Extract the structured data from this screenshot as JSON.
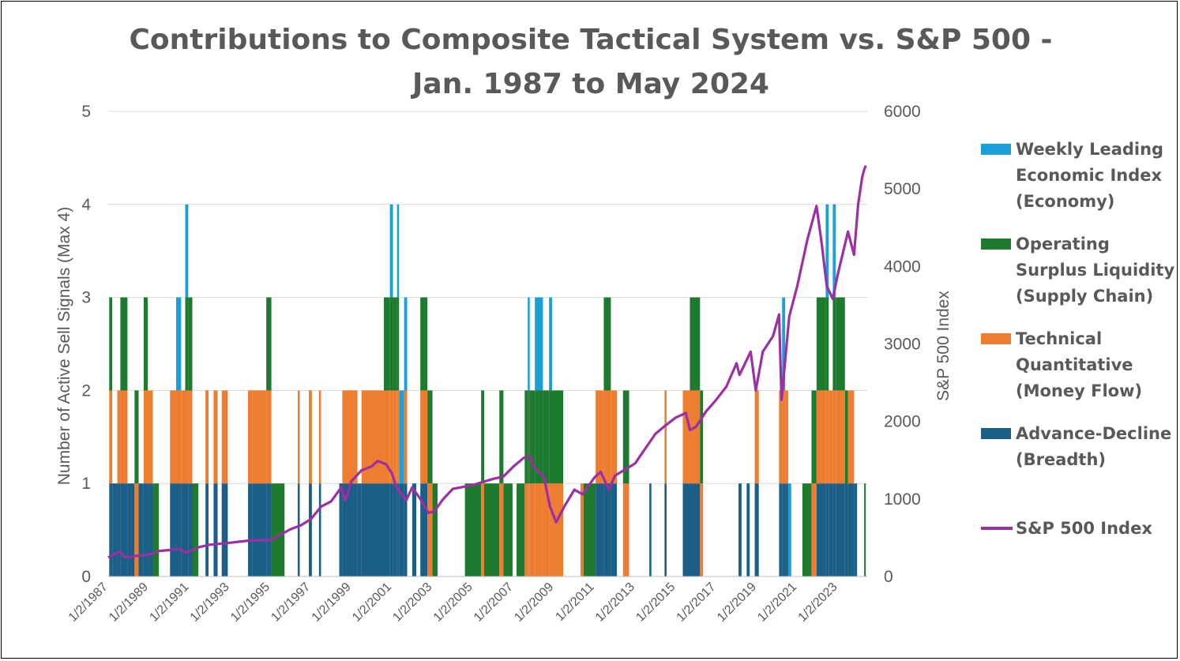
{
  "chart_data": {
    "type": "bar+line",
    "title_lines": [
      "Contributions to Composite Tactical System vs. S&P 500 -",
      "Jan. 1987 to May 2024"
    ],
    "ylabel": "Number of Active Sell Signals (Max 4)",
    "y2label": "S&P 500 Index",
    "ylim": [
      0,
      5
    ],
    "y2lim": [
      0,
      6000
    ],
    "yticks": [
      "0",
      "1",
      "2",
      "3",
      "4",
      "5"
    ],
    "y2ticks": [
      "0",
      "1000",
      "2000",
      "3000",
      "4000",
      "5000",
      "6000"
    ],
    "xlim": [
      1987.0,
      2024.45
    ],
    "xticks": [
      {
        "label": "1/2/1987",
        "x": 1987.0
      },
      {
        "label": "1/2/1989",
        "x": 1989.0
      },
      {
        "label": "1/2/1991",
        "x": 1991.0
      },
      {
        "label": "1/2/1993",
        "x": 1993.0
      },
      {
        "label": "1/2/1995",
        "x": 1995.0
      },
      {
        "label": "1/2/1997",
        "x": 1997.0
      },
      {
        "label": "1/2/1999",
        "x": 1999.0
      },
      {
        "label": "1/2/2001",
        "x": 2001.0
      },
      {
        "label": "1/2/2003",
        "x": 2003.0
      },
      {
        "label": "1/2/2005",
        "x": 2005.0
      },
      {
        "label": "1/2/2007",
        "x": 2007.0
      },
      {
        "label": "1/2/2009",
        "x": 2009.0
      },
      {
        "label": "1/2/2011",
        "x": 2011.0
      },
      {
        "label": "1/2/2013",
        "x": 2013.0
      },
      {
        "label": "1/2/2015",
        "x": 2015.0
      },
      {
        "label": "1/2/2017",
        "x": 2017.0
      },
      {
        "label": "1/2/2019",
        "x": 2019.0
      },
      {
        "label": "1/2/2021",
        "x": 2021.0
      },
      {
        "label": "1/2/2023",
        "x": 2023.0
      }
    ],
    "colors": {
      "economy": "#1AA0D8",
      "liquidity": "#1E7A2E",
      "technical": "#ED7D31",
      "breadth": "#1B5E86",
      "sp500": "#9B2FA3",
      "grid": "#D9D9D9"
    },
    "legend": [
      {
        "key": "economy",
        "lines": [
          "Weekly Leading",
          "Economic Index",
          "(Economy)"
        ],
        "kind": "box"
      },
      {
        "key": "liquidity",
        "lines": [
          "Operating",
          "Surplus Liquidity",
          "(Supply Chain)"
        ],
        "kind": "box"
      },
      {
        "key": "technical",
        "lines": [
          "Technical",
          "Quantitative",
          "(Money Flow)"
        ],
        "kind": "box"
      },
      {
        "key": "breadth",
        "lines": [
          "Advance-Decline",
          "(Breadth)"
        ],
        "kind": "box"
      },
      {
        "key": "sp500",
        "lines": [
          "S&P 500 Index"
        ],
        "kind": "line"
      }
    ],
    "signal_bars": [
      {
        "x0": 1987.05,
        "x1": 1987.2,
        "breadth": 1,
        "technical": 1,
        "liquidity": 1,
        "economy": 0
      },
      {
        "x0": 1987.2,
        "x1": 1987.45,
        "breadth": 1,
        "technical": 0,
        "liquidity": 0,
        "economy": 0
      },
      {
        "x0": 1987.45,
        "x1": 1987.6,
        "breadth": 1,
        "technical": 1,
        "liquidity": 0,
        "economy": 0
      },
      {
        "x0": 1987.6,
        "x1": 1987.95,
        "breadth": 1,
        "technical": 1,
        "liquidity": 1,
        "economy": 0
      },
      {
        "x0": 1987.95,
        "x1": 1988.3,
        "breadth": 1,
        "technical": 0,
        "liquidity": 0,
        "economy": 0
      },
      {
        "x0": 1988.3,
        "x1": 1988.5,
        "breadth": 0,
        "technical": 1,
        "liquidity": 1,
        "economy": 0
      },
      {
        "x0": 1988.5,
        "x1": 1988.75,
        "breadth": 1,
        "technical": 0,
        "liquidity": 0,
        "economy": 0
      },
      {
        "x0": 1988.75,
        "x1": 1988.95,
        "breadth": 1,
        "technical": 1,
        "liquidity": 1,
        "economy": 0
      },
      {
        "x0": 1988.95,
        "x1": 1989.2,
        "breadth": 1,
        "technical": 1,
        "liquidity": 0,
        "economy": 0
      },
      {
        "x0": 1989.2,
        "x1": 1989.5,
        "breadth": 0,
        "technical": 0,
        "liquidity": 1,
        "economy": 0
      },
      {
        "x0": 1990.05,
        "x1": 1990.35,
        "breadth": 1,
        "technical": 1,
        "liquidity": 0,
        "economy": 0
      },
      {
        "x0": 1990.35,
        "x1": 1990.6,
        "breadth": 1,
        "technical": 1,
        "liquidity": 0,
        "economy": 1
      },
      {
        "x0": 1990.6,
        "x1": 1990.8,
        "breadth": 1,
        "technical": 1,
        "liquidity": 0,
        "economy": 0
      },
      {
        "x0": 1990.8,
        "x1": 1990.95,
        "breadth": 1,
        "technical": 1,
        "liquidity": 1,
        "economy": 1
      },
      {
        "x0": 1990.95,
        "x1": 1991.15,
        "breadth": 1,
        "technical": 1,
        "liquidity": 1,
        "economy": 0
      },
      {
        "x0": 1991.15,
        "x1": 1991.45,
        "breadth": 0,
        "technical": 0,
        "liquidity": 1,
        "economy": 0
      },
      {
        "x0": 1991.8,
        "x1": 1991.95,
        "breadth": 1,
        "technical": 1,
        "liquidity": 0,
        "economy": 0
      },
      {
        "x0": 1992.2,
        "x1": 1992.4,
        "breadth": 1,
        "technical": 1,
        "liquidity": 0,
        "economy": 0
      },
      {
        "x0": 1992.6,
        "x1": 1992.9,
        "breadth": 1,
        "technical": 1,
        "liquidity": 0,
        "economy": 0
      },
      {
        "x0": 1993.9,
        "x1": 1994.1,
        "breadth": 1,
        "technical": 1,
        "liquidity": 0,
        "economy": 0
      },
      {
        "x0": 1994.1,
        "x1": 1994.8,
        "breadth": 1,
        "technical": 1,
        "liquidity": 0,
        "economy": 0
      },
      {
        "x0": 1994.8,
        "x1": 1995.05,
        "breadth": 1,
        "technical": 1,
        "liquidity": 1,
        "economy": 0
      },
      {
        "x0": 1995.05,
        "x1": 1995.7,
        "breadth": 0,
        "technical": 0,
        "liquidity": 1,
        "economy": 0
      },
      {
        "x0": 1996.35,
        "x1": 1996.45,
        "breadth": 1,
        "technical": 1,
        "liquidity": 0,
        "economy": 0
      },
      {
        "x0": 1996.9,
        "x1": 1997.05,
        "breadth": 1,
        "technical": 1,
        "liquidity": 0,
        "economy": 0
      },
      {
        "x0": 1997.4,
        "x1": 1997.5,
        "breadth": 1,
        "technical": 1,
        "liquidity": 0,
        "economy": 0
      },
      {
        "x0": 1998.4,
        "x1": 1998.55,
        "breadth": 1,
        "technical": 0,
        "liquidity": 0,
        "economy": 0
      },
      {
        "x0": 1998.55,
        "x1": 1999.3,
        "breadth": 1,
        "technical": 1,
        "liquidity": 0,
        "economy": 0
      },
      {
        "x0": 1999.3,
        "x1": 1999.5,
        "breadth": 1,
        "technical": 0,
        "liquidity": 0,
        "economy": 0
      },
      {
        "x0": 1999.5,
        "x1": 2000.6,
        "breadth": 1,
        "technical": 1,
        "liquidity": 0,
        "economy": 0
      },
      {
        "x0": 2000.6,
        "x1": 2000.9,
        "breadth": 1,
        "technical": 1,
        "liquidity": 1,
        "economy": 0
      },
      {
        "x0": 2000.9,
        "x1": 2001.05,
        "breadth": 1,
        "technical": 1,
        "liquidity": 1,
        "economy": 1
      },
      {
        "x0": 2001.05,
        "x1": 2001.25,
        "breadth": 1,
        "technical": 1,
        "liquidity": 1,
        "economy": 0
      },
      {
        "x0": 2001.25,
        "x1": 2001.35,
        "breadth": 1,
        "technical": 1,
        "liquidity": 1,
        "economy": 1
      },
      {
        "x0": 2001.35,
        "x1": 2001.6,
        "breadth": 1,
        "technical": 0,
        "liquidity": 0,
        "economy": 1
      },
      {
        "x0": 2001.6,
        "x1": 2001.75,
        "breadth": 1,
        "technical": 1,
        "liquidity": 0,
        "economy": 1
      },
      {
        "x0": 2002.0,
        "x1": 2002.2,
        "breadth": 1,
        "technical": 0,
        "liquidity": 0,
        "economy": 0
      },
      {
        "x0": 2002.4,
        "x1": 2002.75,
        "breadth": 1,
        "technical": 1,
        "liquidity": 1,
        "economy": 0
      },
      {
        "x0": 2002.75,
        "x1": 2003.0,
        "breadth": 0,
        "technical": 1,
        "liquidity": 1,
        "economy": 0
      },
      {
        "x0": 2003.0,
        "x1": 2003.25,
        "breadth": 0,
        "technical": 0,
        "liquidity": 1,
        "economy": 0
      },
      {
        "x0": 2004.6,
        "x1": 2005.4,
        "breadth": 0,
        "technical": 0,
        "liquidity": 1,
        "economy": 0
      },
      {
        "x0": 2005.4,
        "x1": 2005.55,
        "breadth": 0,
        "technical": 1,
        "liquidity": 1,
        "economy": 0
      },
      {
        "x0": 2005.55,
        "x1": 2006.3,
        "breadth": 0,
        "technical": 0,
        "liquidity": 1,
        "economy": 0
      },
      {
        "x0": 2006.3,
        "x1": 2006.5,
        "breadth": 0,
        "technical": 1,
        "liquidity": 1,
        "economy": 0
      },
      {
        "x0": 2006.5,
        "x1": 2006.95,
        "breadth": 0,
        "technical": 0,
        "liquidity": 1,
        "economy": 0
      },
      {
        "x0": 2007.15,
        "x1": 2007.55,
        "breadth": 0,
        "technical": 0,
        "liquidity": 1,
        "economy": 0
      },
      {
        "x0": 2007.55,
        "x1": 2007.7,
        "breadth": 0,
        "technical": 1,
        "liquidity": 1,
        "economy": 0
      },
      {
        "x0": 2007.7,
        "x1": 2007.8,
        "breadth": 0,
        "technical": 1,
        "liquidity": 1,
        "economy": 1
      },
      {
        "x0": 2007.8,
        "x1": 2008.05,
        "breadth": 0,
        "technical": 1,
        "liquidity": 1,
        "economy": 0
      },
      {
        "x0": 2008.05,
        "x1": 2008.45,
        "breadth": 0,
        "technical": 1,
        "liquidity": 1,
        "economy": 1
      },
      {
        "x0": 2008.45,
        "x1": 2008.75,
        "breadth": 0,
        "technical": 1,
        "liquidity": 1,
        "economy": 0
      },
      {
        "x0": 2008.75,
        "x1": 2008.9,
        "breadth": 0,
        "technical": 1,
        "liquidity": 1,
        "economy": 1
      },
      {
        "x0": 2008.9,
        "x1": 2009.45,
        "breadth": 0,
        "technical": 1,
        "liquidity": 1,
        "economy": 0
      },
      {
        "x0": 2010.3,
        "x1": 2010.45,
        "breadth": 0,
        "technical": 1,
        "liquidity": 0,
        "economy": 0
      },
      {
        "x0": 2010.45,
        "x1": 2011.05,
        "breadth": 0,
        "technical": 0,
        "liquidity": 1,
        "economy": 0
      },
      {
        "x0": 2011.05,
        "x1": 2011.45,
        "breadth": 1,
        "technical": 1,
        "liquidity": 0,
        "economy": 0
      },
      {
        "x0": 2011.45,
        "x1": 2011.8,
        "breadth": 1,
        "technical": 1,
        "liquidity": 1,
        "economy": 0
      },
      {
        "x0": 2011.8,
        "x1": 2012.1,
        "breadth": 1,
        "technical": 1,
        "liquidity": 0,
        "economy": 0
      },
      {
        "x0": 2012.4,
        "x1": 2012.7,
        "breadth": 0,
        "technical": 1,
        "liquidity": 1,
        "economy": 0
      },
      {
        "x0": 2013.7,
        "x1": 2013.8,
        "breadth": 1,
        "technical": 0,
        "liquidity": 0,
        "economy": 0
      },
      {
        "x0": 2014.45,
        "x1": 2014.55,
        "breadth": 1,
        "technical": 1,
        "liquidity": 0,
        "economy": 0
      },
      {
        "x0": 2015.35,
        "x1": 2015.7,
        "breadth": 1,
        "technical": 1,
        "liquidity": 0,
        "economy": 0
      },
      {
        "x0": 2015.7,
        "x1": 2016.2,
        "breadth": 1,
        "technical": 1,
        "liquidity": 1,
        "economy": 0
      },
      {
        "x0": 2016.2,
        "x1": 2016.35,
        "breadth": 0,
        "technical": 1,
        "liquidity": 1,
        "economy": 0
      },
      {
        "x0": 2018.1,
        "x1": 2018.25,
        "breadth": 1,
        "technical": 0,
        "liquidity": 0,
        "economy": 0
      },
      {
        "x0": 2018.5,
        "x1": 2018.65,
        "breadth": 1,
        "technical": 0,
        "liquidity": 0,
        "economy": 0
      },
      {
        "x0": 2018.9,
        "x1": 2019.1,
        "breadth": 1,
        "technical": 1,
        "liquidity": 0,
        "economy": 0
      },
      {
        "x0": 2020.1,
        "x1": 2020.25,
        "breadth": 1,
        "technical": 1,
        "liquidity": 0,
        "economy": 0
      },
      {
        "x0": 2020.25,
        "x1": 2020.4,
        "breadth": 1,
        "technical": 1,
        "liquidity": 0,
        "economy": 1
      },
      {
        "x0": 2020.4,
        "x1": 2020.55,
        "breadth": 1,
        "technical": 1,
        "liquidity": 0,
        "economy": 0
      },
      {
        "x0": 2020.55,
        "x1": 2020.7,
        "breadth": 0,
        "technical": 0,
        "liquidity": 0,
        "economy": 1
      },
      {
        "x0": 2021.25,
        "x1": 2021.7,
        "breadth": 0,
        "technical": 0,
        "liquidity": 1,
        "economy": 0
      },
      {
        "x0": 2021.7,
        "x1": 2021.95,
        "breadth": 0,
        "technical": 1,
        "liquidity": 1,
        "economy": 0
      },
      {
        "x0": 2021.95,
        "x1": 2022.4,
        "breadth": 1,
        "technical": 1,
        "liquidity": 1,
        "economy": 0
      },
      {
        "x0": 2022.4,
        "x1": 2022.55,
        "breadth": 1,
        "technical": 1,
        "liquidity": 1,
        "economy": 1
      },
      {
        "x0": 2022.55,
        "x1": 2022.75,
        "breadth": 1,
        "technical": 1,
        "liquidity": 0,
        "economy": 0
      },
      {
        "x0": 2022.75,
        "x1": 2022.9,
        "breadth": 1,
        "technical": 1,
        "liquidity": 1,
        "economy": 1
      },
      {
        "x0": 2022.9,
        "x1": 2023.35,
        "breadth": 1,
        "technical": 1,
        "liquidity": 1,
        "economy": 0
      },
      {
        "x0": 2023.35,
        "x1": 2023.5,
        "breadth": 1,
        "technical": 0,
        "liquidity": 1,
        "economy": 0
      },
      {
        "x0": 2023.5,
        "x1": 2023.8,
        "breadth": 1,
        "technical": 1,
        "liquidity": 0,
        "economy": 0
      },
      {
        "x0": 2023.8,
        "x1": 2023.95,
        "breadth": 1,
        "technical": 0,
        "liquidity": 0,
        "economy": 0
      },
      {
        "x0": 2024.3,
        "x1": 2024.38,
        "breadth": 0,
        "technical": 0,
        "liquidity": 1,
        "economy": 0
      }
    ],
    "sp500_series": [
      [
        1987.0,
        245
      ],
      [
        1987.3,
        290
      ],
      [
        1987.6,
        320
      ],
      [
        1987.8,
        250
      ],
      [
        1988.0,
        248
      ],
      [
        1988.5,
        270
      ],
      [
        1989.0,
        280
      ],
      [
        1989.5,
        330
      ],
      [
        1990.0,
        340
      ],
      [
        1990.5,
        360
      ],
      [
        1990.8,
        310
      ],
      [
        1991.0,
        320
      ],
      [
        1991.5,
        380
      ],
      [
        1992.0,
        410
      ],
      [
        1993.0,
        435
      ],
      [
        1994.0,
        465
      ],
      [
        1995.0,
        470
      ],
      [
        1995.5,
        540
      ],
      [
        1996.0,
        610
      ],
      [
        1996.5,
        660
      ],
      [
        1997.0,
        740
      ],
      [
        1997.5,
        900
      ],
      [
        1998.0,
        970
      ],
      [
        1998.5,
        1150
      ],
      [
        1998.7,
        980
      ],
      [
        1999.0,
        1230
      ],
      [
        1999.5,
        1370
      ],
      [
        2000.0,
        1420
      ],
      [
        2000.3,
        1490
      ],
      [
        2000.7,
        1450
      ],
      [
        2001.0,
        1330
      ],
      [
        2001.2,
        1160
      ],
      [
        2001.7,
        980
      ],
      [
        2002.0,
        1150
      ],
      [
        2002.4,
        1000
      ],
      [
        2002.8,
        820
      ],
      [
        2003.1,
        840
      ],
      [
        2003.5,
        990
      ],
      [
        2004.0,
        1130
      ],
      [
        2005.0,
        1180
      ],
      [
        2006.0,
        1260
      ],
      [
        2006.5,
        1290
      ],
      [
        2007.0,
        1420
      ],
      [
        2007.5,
        1530
      ],
      [
        2007.8,
        1550
      ],
      [
        2008.0,
        1410
      ],
      [
        2008.5,
        1280
      ],
      [
        2008.8,
        900
      ],
      [
        2009.1,
        700
      ],
      [
        2009.5,
        900
      ],
      [
        2010.0,
        1120
      ],
      [
        2010.4,
        1060
      ],
      [
        2011.0,
        1280
      ],
      [
        2011.3,
        1350
      ],
      [
        2011.7,
        1120
      ],
      [
        2012.0,
        1300
      ],
      [
        2012.5,
        1380
      ],
      [
        2013.0,
        1460
      ],
      [
        2013.5,
        1650
      ],
      [
        2014.0,
        1840
      ],
      [
        2014.5,
        1950
      ],
      [
        2015.0,
        2050
      ],
      [
        2015.5,
        2110
      ],
      [
        2015.7,
        1890
      ],
      [
        2016.0,
        1930
      ],
      [
        2016.5,
        2130
      ],
      [
        2017.0,
        2280
      ],
      [
        2017.5,
        2450
      ],
      [
        2018.0,
        2750
      ],
      [
        2018.15,
        2600
      ],
      [
        2018.7,
        2900
      ],
      [
        2018.95,
        2400
      ],
      [
        2019.3,
        2900
      ],
      [
        2019.8,
        3100
      ],
      [
        2020.1,
        3380
      ],
      [
        2020.22,
        2280
      ],
      [
        2020.6,
        3350
      ],
      [
        2021.0,
        3750
      ],
      [
        2021.5,
        4350
      ],
      [
        2021.95,
        4780
      ],
      [
        2022.2,
        4300
      ],
      [
        2022.45,
        3750
      ],
      [
        2022.75,
        3580
      ],
      [
        2023.0,
        3900
      ],
      [
        2023.5,
        4450
      ],
      [
        2023.8,
        4150
      ],
      [
        2024.0,
        4800
      ],
      [
        2024.2,
        5150
      ],
      [
        2024.3,
        5250
      ],
      [
        2024.38,
        5300
      ]
    ]
  }
}
